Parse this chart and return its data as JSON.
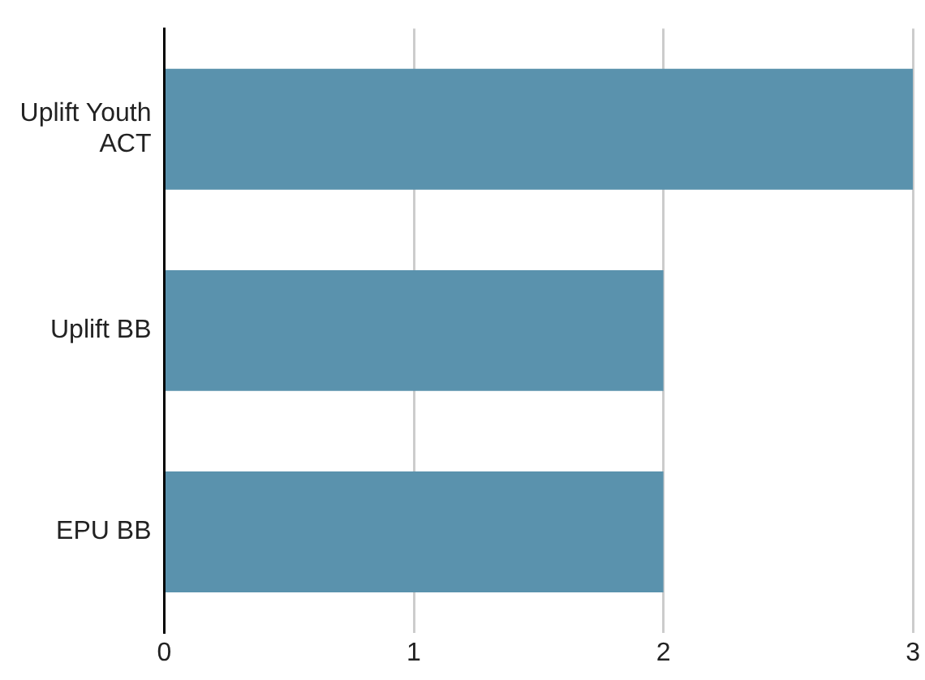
{
  "chart_data": {
    "type": "bar",
    "orientation": "horizontal",
    "categories": [
      "Uplift Youth ACT",
      "Uplift BB",
      "EPU BB"
    ],
    "values": [
      3,
      2,
      2
    ],
    "color": "#5a92ad",
    "xlim": [
      0,
      3
    ],
    "xticks": [
      0,
      1,
      2,
      3
    ],
    "grid": "x",
    "legend": false
  }
}
